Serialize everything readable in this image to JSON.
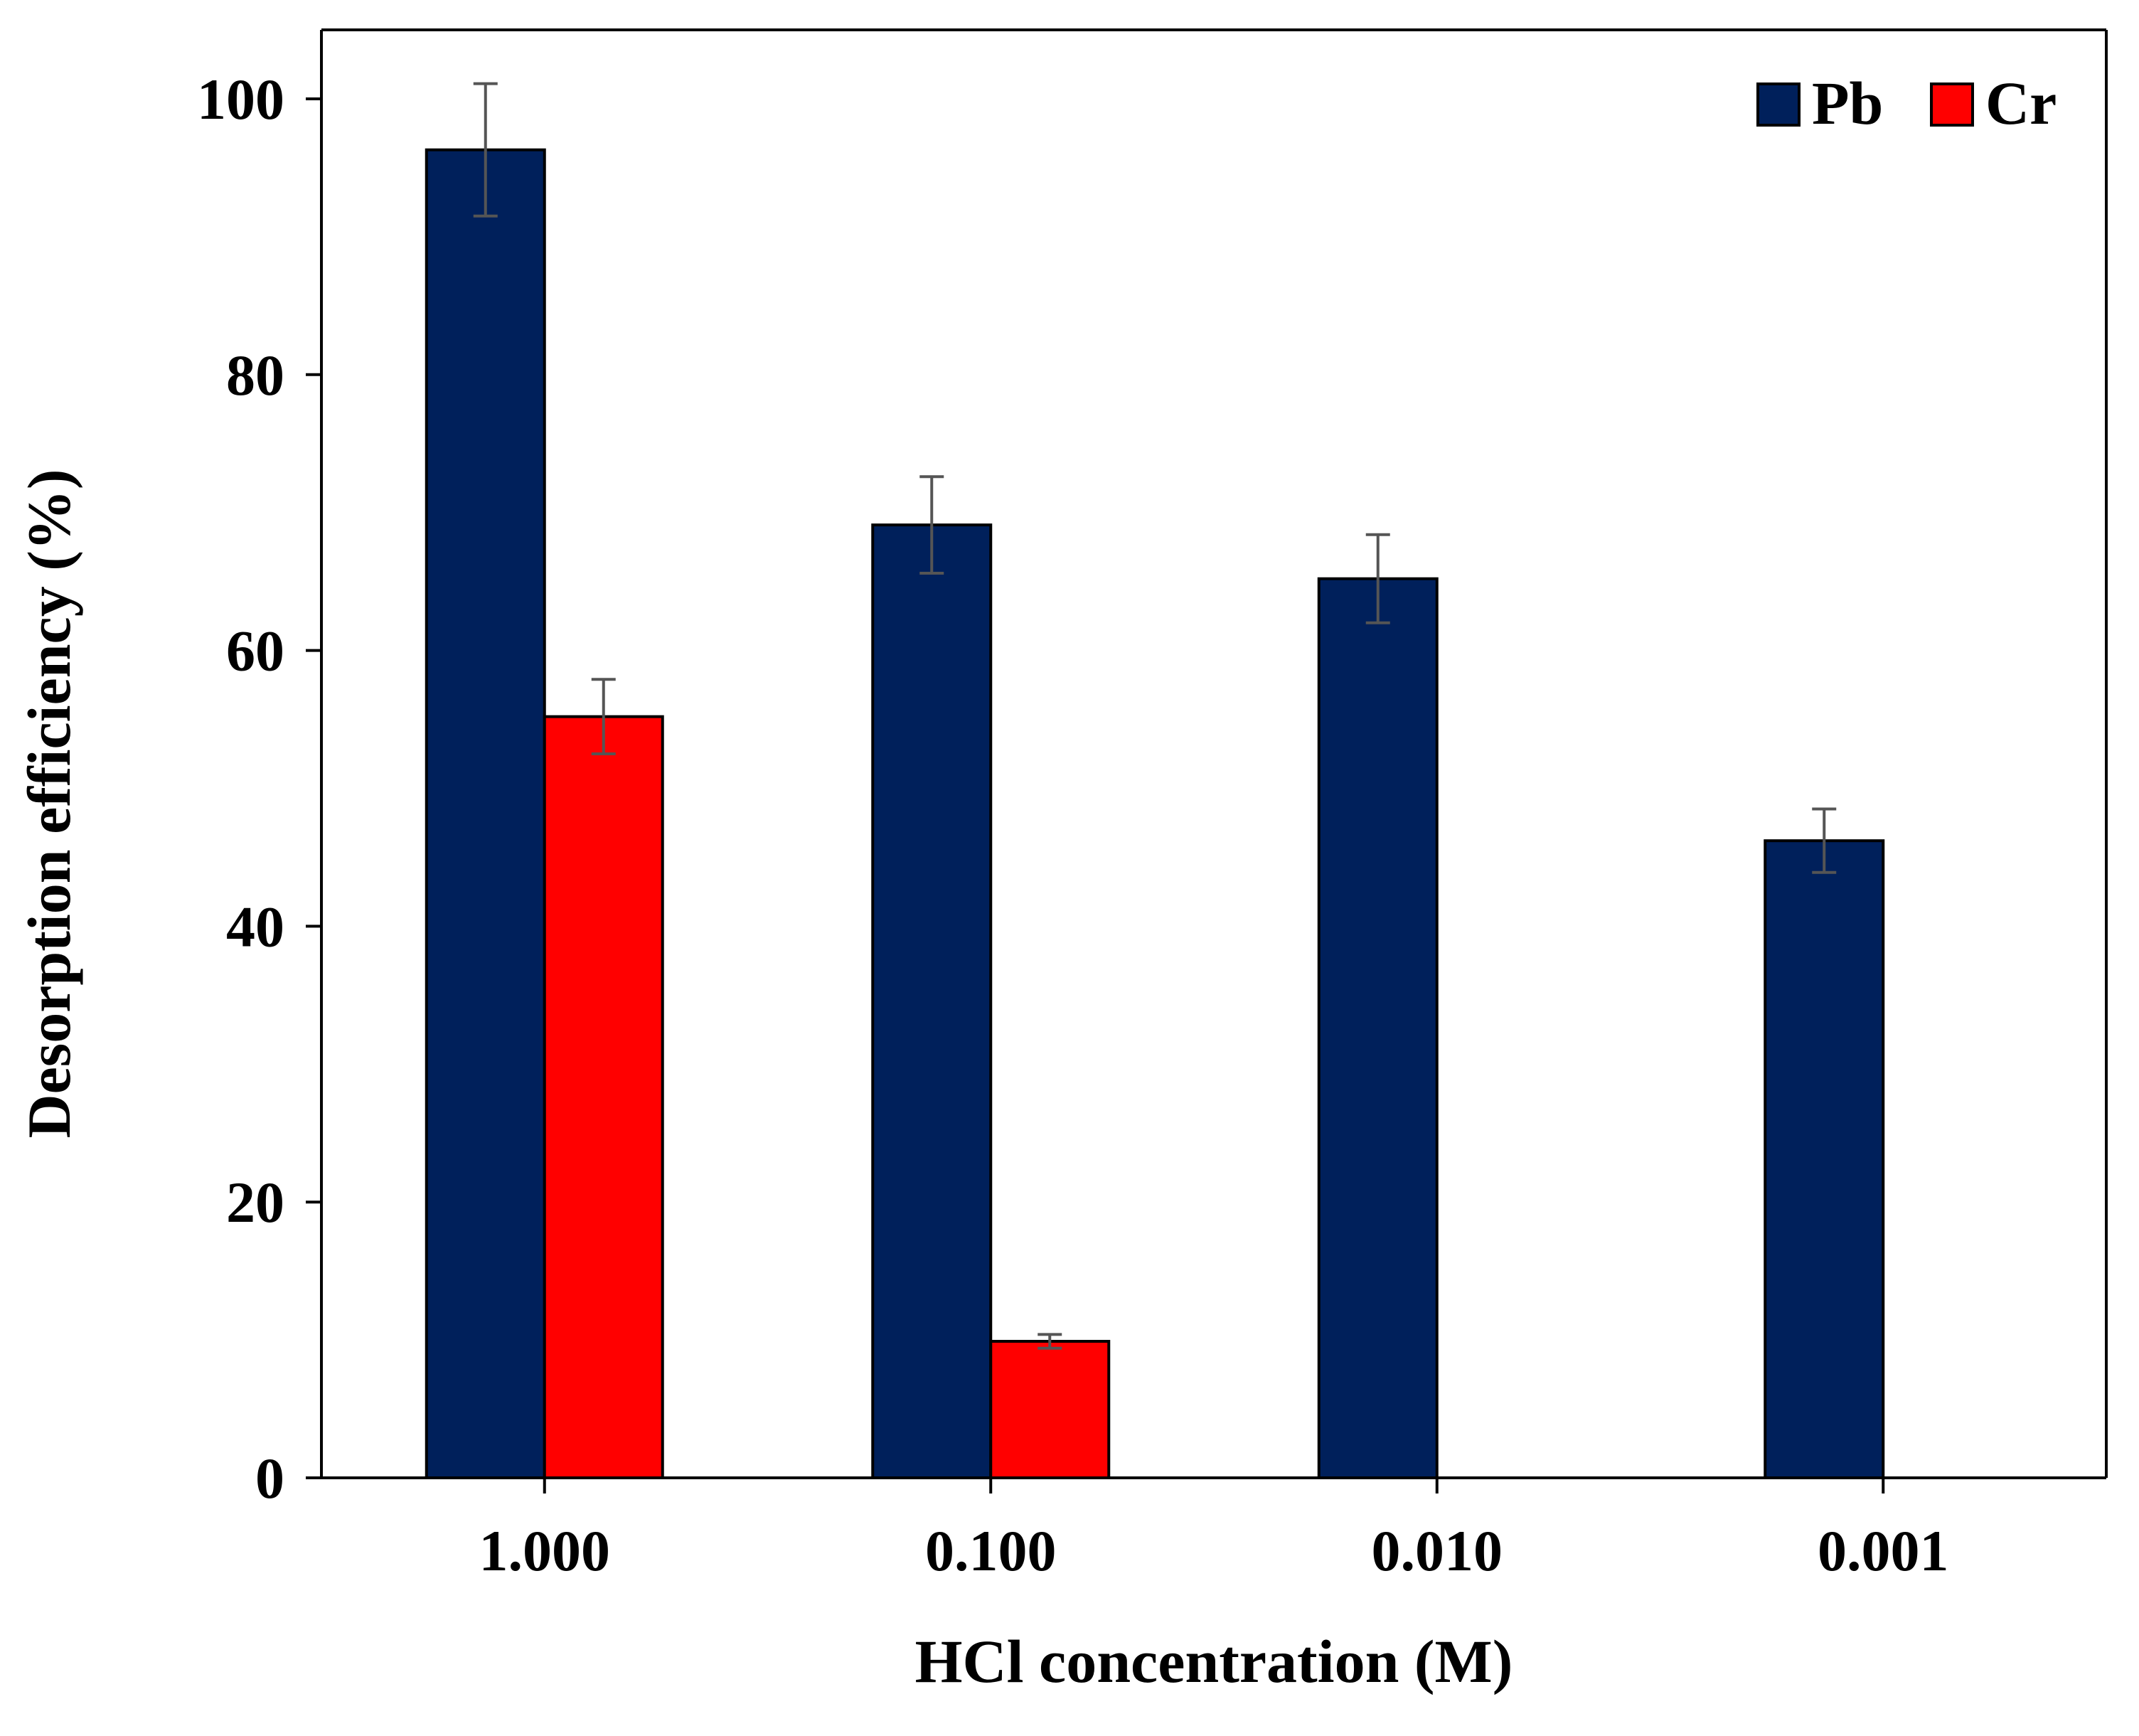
{
  "chart_data": {
    "type": "bar",
    "title": "",
    "xlabel": "HCl concentration (M)",
    "ylabel": "Desorption efficiency (%)",
    "categories": [
      "1.000",
      "0.100",
      "0.010",
      "0.001"
    ],
    "series": [
      {
        "name": "Pb",
        "color": "#00205b",
        "values": [
          96.3,
          69.1,
          65.2,
          46.2
        ],
        "errors": [
          4.8,
          3.5,
          3.2,
          2.3
        ]
      },
      {
        "name": "Cr",
        "color": "#ff0000",
        "values": [
          55.2,
          9.9,
          null,
          null
        ],
        "errors": [
          2.7,
          0.5,
          null,
          null
        ]
      }
    ],
    "ylim": [
      0,
      105
    ],
    "yticks": [
      0,
      20,
      40,
      60,
      80,
      100
    ],
    "grid": false,
    "legend": "top-right",
    "error_bar_color": "#555555"
  }
}
